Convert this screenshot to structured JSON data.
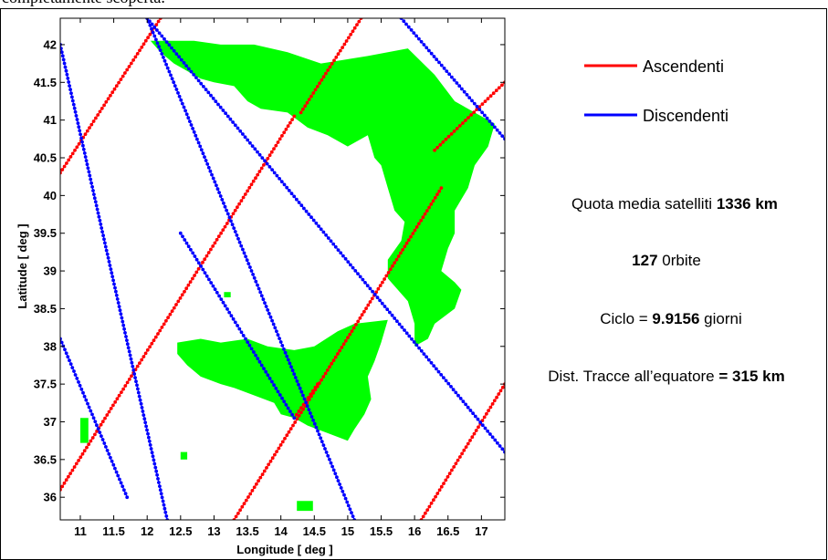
{
  "page": {
    "header_text": "completamente scoperta."
  },
  "chart_data": {
    "type": "line",
    "title": "",
    "xlabel": "Longitude [ deg ]",
    "ylabel": "Latitude [ deg ]",
    "xlim": [
      10.7,
      17.35
    ],
    "ylim": [
      35.7,
      42.35
    ],
    "xticks": [
      11,
      11.5,
      12,
      12.5,
      13,
      13.5,
      14,
      14.5,
      15,
      15.5,
      16,
      16.5,
      17
    ],
    "xtick_labels": [
      "11",
      "11.5",
      "12",
      "12.5",
      "13",
      "13.5",
      "14",
      "14.5",
      "15",
      "15.5",
      "16",
      "16.5",
      "17"
    ],
    "yticks": [
      36,
      36.5,
      37,
      37.5,
      38,
      38.5,
      39,
      39.5,
      40,
      40.5,
      41,
      41.5,
      42
    ],
    "ytick_labels": [
      "36",
      "36.5",
      "37",
      "37.5",
      "38",
      "38.5",
      "39",
      "39.5",
      "40",
      "40.5",
      "41",
      "41.5",
      "42"
    ],
    "grid": false,
    "legend": {
      "position": "right"
    },
    "series": [
      {
        "name": "Ascendenti",
        "color": "#ff0000",
        "tracks": [
          {
            "x": [
              10.7,
              12.2
            ],
            "y": [
              40.3,
              42.35
            ]
          },
          {
            "x": [
              10.7,
              14.2
            ],
            "y": [
              36.1,
              41.05
            ]
          },
          {
            "x": [
              13.3,
              16.4
            ],
            "y": [
              35.7,
              40.1
            ]
          },
          {
            "x": [
              16.1,
              17.35
            ],
            "y": [
              35.7,
              37.5
            ]
          },
          {
            "x": [
              14.3,
              15.2
            ],
            "y": [
              41.1,
              42.35
            ]
          },
          {
            "x": [
              14.2,
              14.55
            ],
            "y": [
              37.05,
              37.5
            ]
          },
          {
            "x": [
              16.3,
              17.35
            ],
            "y": [
              40.6,
              41.5
            ]
          }
        ]
      },
      {
        "name": "Discendenti",
        "color": "#0000ff",
        "tracks": [
          {
            "x": [
              10.7,
              12.3
            ],
            "y": [
              42.0,
              35.7
            ]
          },
          {
            "x": [
              10.7,
              11.7
            ],
            "y": [
              38.1,
              36.0
            ]
          },
          {
            "x": [
              12.0,
              15.1
            ],
            "y": [
              42.35,
              35.7
            ]
          },
          {
            "x": [
              12.0,
              17.35
            ],
            "y": [
              42.35,
              36.6
            ]
          },
          {
            "x": [
              15.8,
              17.35
            ],
            "y": [
              42.35,
              40.75
            ]
          },
          {
            "x": [
              12.5,
              14.2
            ],
            "y": [
              39.5,
              37.05
            ]
          }
        ]
      }
    ],
    "land_color": "#00ff00",
    "land_regions": [
      {
        "name": "Italy",
        "x": [
          12.05,
          12.4,
          12.7,
          13.1,
          13.6,
          14.1,
          14.6,
          15.3,
          15.9,
          16.3,
          16.6,
          17.2,
          17.1,
          16.9,
          16.8,
          16.6,
          16.6,
          16.5,
          16.4,
          16.6,
          16.7,
          16.6,
          16.3,
          16.2,
          16.0,
          16.0,
          15.9,
          15.6,
          15.6,
          15.8,
          15.85,
          15.7,
          15.6,
          15.5,
          15.4,
          15.3,
          15.0,
          14.7,
          14.4,
          14.1,
          13.7,
          13.5,
          13.3,
          13.0,
          12.8,
          12.6,
          12.4,
          12.2,
          12.05
        ],
        "y": [
          42.05,
          42.05,
          42.05,
          42.0,
          42.0,
          41.9,
          41.75,
          41.85,
          41.95,
          41.6,
          41.25,
          40.95,
          40.65,
          40.4,
          40.1,
          39.8,
          39.5,
          39.3,
          39.0,
          38.85,
          38.75,
          38.5,
          38.3,
          38.1,
          38.0,
          38.3,
          38.6,
          38.9,
          39.15,
          39.4,
          39.65,
          39.8,
          40.1,
          40.4,
          40.5,
          40.8,
          40.65,
          40.8,
          40.9,
          41.1,
          41.15,
          41.25,
          41.45,
          41.5,
          41.55,
          41.65,
          41.75,
          41.9,
          42.05
        ]
      },
      {
        "name": "Sicily",
        "x": [
          12.45,
          12.8,
          13.1,
          13.5,
          13.8,
          14.2,
          14.5,
          14.85,
          15.1,
          15.6,
          15.5,
          15.4,
          15.3,
          15.35,
          15.25,
          15.1,
          15.0,
          14.7,
          14.4,
          14.2,
          14.0,
          13.9,
          13.6,
          13.3,
          13.1,
          12.8,
          12.6,
          12.45,
          12.45
        ],
        "y": [
          38.05,
          38.1,
          38.05,
          38.1,
          38.0,
          37.95,
          38.0,
          38.2,
          38.3,
          38.35,
          38.05,
          37.8,
          37.6,
          37.3,
          37.1,
          36.9,
          36.75,
          36.85,
          36.95,
          37.05,
          37.1,
          37.25,
          37.35,
          37.45,
          37.5,
          37.6,
          37.75,
          37.9,
          38.05
        ]
      },
      {
        "name": "Malta",
        "x": [
          14.24,
          14.48,
          14.48,
          14.24
        ],
        "y": [
          35.95,
          35.95,
          35.82,
          35.82
        ]
      },
      {
        "name": "Pantelleria",
        "x": [
          11.0,
          11.12,
          11.12,
          11.0
        ],
        "y": [
          37.05,
          37.05,
          36.72,
          36.72
        ]
      },
      {
        "name": "Lampedusa",
        "x": [
          12.5,
          12.6,
          12.6,
          12.5
        ],
        "y": [
          36.6,
          36.6,
          36.5,
          36.5
        ]
      },
      {
        "name": "Ustica",
        "x": [
          13.15,
          13.25,
          13.25,
          13.15
        ],
        "y": [
          38.72,
          38.72,
          38.65,
          38.65
        ]
      }
    ]
  },
  "info": {
    "altitude_label": "Quota media satelliti",
    "altitude_value": "1336 km",
    "orbits_value": "127",
    "orbits_label": "0rbite",
    "cycle_label": "Ciclo =",
    "cycle_value": "9.9156",
    "cycle_unit": "giorni",
    "distance_label": "Dist. Tracce all’equatore",
    "distance_value": "= 315 km"
  }
}
